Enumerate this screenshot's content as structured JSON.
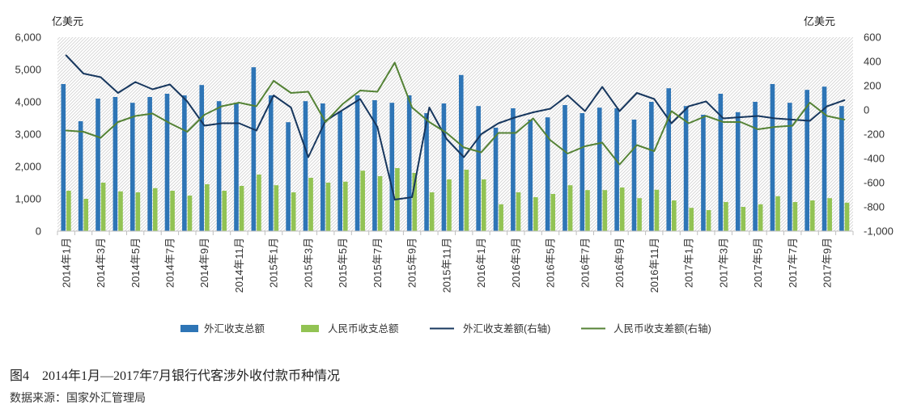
{
  "chart_data": {
    "type": "bar",
    "title": "图4　2014年1月—2017年7月银行代客涉外收付款币种情况",
    "source": "数据来源：国家外汇管理局",
    "ylabel": "亿美元",
    "y2label": "亿美元",
    "ylim": [
      0,
      6000
    ],
    "y2lim": [
      -1000,
      600
    ],
    "y_tick_labels": [
      "0",
      "1,000",
      "2,000",
      "3,000",
      "4,000",
      "5,000",
      "6,000"
    ],
    "y2_tick_labels": [
      "-1,000",
      "-800",
      "-600",
      "-400",
      "-200",
      "0",
      "200",
      "400",
      "600"
    ],
    "x_tick_labels": [
      "2014年1月",
      "2014年3月",
      "2014年5月",
      "2014年7月",
      "2014年9月",
      "2014年11月",
      "2015年1月",
      "2015年3月",
      "2015年5月",
      "2015年7月",
      "2015年9月",
      "2015年11月",
      "2016年1月",
      "2016年3月",
      "2016年5月",
      "2016年7月",
      "2016年9月",
      "2016年11月",
      "2017年1月",
      "2017年3月",
      "2017年5月",
      "2017年7月",
      "2017年9月"
    ],
    "grid": false,
    "legend_position": "bottom",
    "series": [
      {
        "name": "外汇收支总额",
        "type": "bar",
        "axis": "left",
        "color": "#2E75B6",
        "values": [
          4550,
          3400,
          4100,
          4150,
          3970,
          4150,
          4250,
          4200,
          4520,
          4020,
          3970,
          5070,
          4200,
          3370,
          4020,
          3950,
          3700,
          4200,
          4050,
          3970,
          4200,
          3650,
          3950,
          4830,
          3870,
          3200,
          3800,
          3450,
          3520,
          3900,
          3650,
          3820,
          3800,
          3450,
          4000,
          4420,
          3870,
          3600,
          4250,
          3680,
          4000,
          4550,
          3970,
          4370,
          4470,
          3870
        ]
      },
      {
        "name": "人民币收支总额",
        "type": "bar",
        "axis": "left",
        "color": "#92C353",
        "values": [
          1250,
          1000,
          1500,
          1230,
          1200,
          1330,
          1250,
          1100,
          1450,
          1250,
          1400,
          1750,
          1420,
          1200,
          1650,
          1500,
          1530,
          1870,
          1700,
          1950,
          1800,
          1200,
          1600,
          1900,
          1600,
          830,
          1200,
          1050,
          1150,
          1420,
          1270,
          1270,
          1350,
          1020,
          1280,
          950,
          720,
          650,
          900,
          750,
          830,
          1080,
          900,
          950,
          1020,
          880
        ]
      },
      {
        "name": "外汇收支差额(右轴)",
        "type": "line",
        "axis": "right",
        "color": "#17375E",
        "values": [
          450,
          300,
          270,
          140,
          230,
          170,
          210,
          70,
          -130,
          -110,
          -110,
          -170,
          120,
          20,
          -390,
          -90,
          0,
          90,
          -140,
          -740,
          -720,
          20,
          -240,
          -390,
          -200,
          -110,
          -60,
          -20,
          10,
          120,
          -10,
          190,
          -10,
          140,
          90,
          -110,
          30,
          70,
          -70,
          -60,
          -50,
          -70,
          -80,
          -90,
          30,
          80
        ]
      },
      {
        "name": "人民币收支差额(右轴)",
        "type": "line",
        "axis": "right",
        "color": "#548235",
        "values": [
          -170,
          -180,
          -230,
          -100,
          -50,
          -30,
          -110,
          -180,
          -40,
          30,
          60,
          30,
          240,
          140,
          150,
          -100,
          50,
          160,
          150,
          390,
          20,
          -100,
          -190,
          -310,
          -350,
          -190,
          -190,
          -70,
          -250,
          -360,
          -300,
          -270,
          -450,
          -290,
          -340,
          -10,
          -110,
          -50,
          -100,
          -100,
          -160,
          -140,
          -130,
          60,
          -50,
          -80
        ]
      }
    ]
  }
}
